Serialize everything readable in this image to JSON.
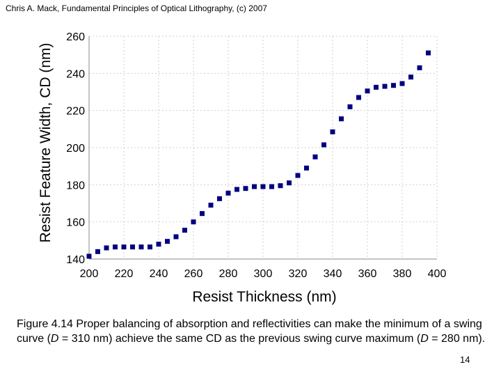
{
  "header": "Chris A. Mack, Fundamental Principles of Optical Lithography, (c) 2007",
  "caption": {
    "text_1": "Figure 4.14  Proper balancing of absorption and reflectivities can make the minimum of a swing curve (",
    "d1": "D",
    "text_2": " = 310 nm) achieve the same CD as the previous swing curve maximum (",
    "d2": "D",
    "text_3": " = 280 nm)."
  },
  "page_number": "14",
  "chart_data": {
    "type": "scatter",
    "title": "",
    "xlabel": "Resist Thickness (nm)",
    "ylabel": "Resist Feature Width, CD (nm)",
    "xlim": [
      200,
      400
    ],
    "ylim": [
      140,
      260
    ],
    "xticks": [
      200,
      220,
      240,
      260,
      280,
      300,
      320,
      340,
      360,
      380,
      400
    ],
    "yticks": [
      140,
      160,
      180,
      200,
      220,
      240,
      260
    ],
    "grid": true,
    "marker_color": "#000080",
    "series": [
      {
        "name": "CD",
        "x": [
          200,
          205,
          210,
          215,
          220,
          225,
          230,
          235,
          240,
          245,
          250,
          255,
          260,
          265,
          270,
          275,
          280,
          285,
          290,
          295,
          300,
          305,
          310,
          315,
          320,
          325,
          330,
          335,
          340,
          345,
          350,
          355,
          360,
          365,
          370,
          375,
          380,
          385,
          390,
          395
        ],
        "y": [
          141.5,
          144,
          146,
          146.5,
          146.5,
          146.5,
          146.5,
          146.5,
          148,
          149.5,
          152,
          155.5,
          160,
          164.5,
          169,
          172.5,
          175.5,
          177.5,
          178,
          179,
          179,
          179,
          179.5,
          181,
          185,
          189,
          195,
          201.5,
          208.5,
          215.5,
          222,
          227,
          230.5,
          232.5,
          233,
          233.5,
          234.5,
          238,
          243,
          251
        ]
      }
    ]
  }
}
